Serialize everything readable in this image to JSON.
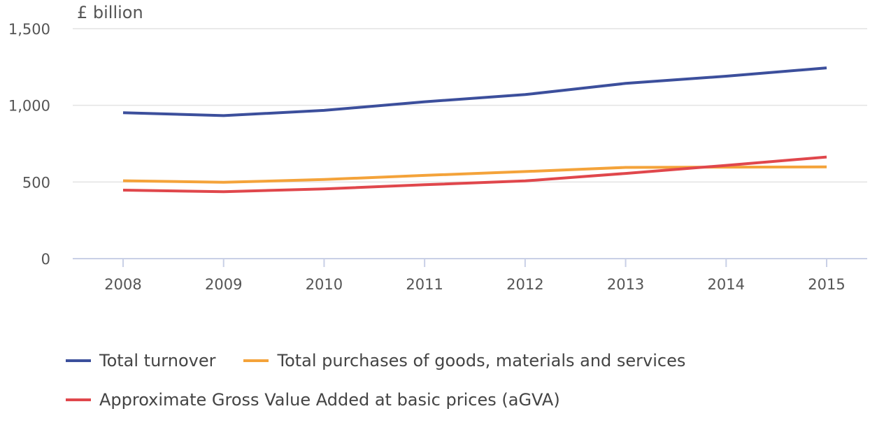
{
  "chart_data": {
    "type": "line",
    "title": "",
    "ylabel": "£ billion",
    "xlabel": "",
    "x": [
      "2008",
      "2009",
      "2010",
      "2011",
      "2012",
      "2013",
      "2014",
      "2015"
    ],
    "ylim": [
      0,
      1500
    ],
    "yticks": [
      0,
      500,
      1000,
      1500
    ],
    "ytick_labels": [
      "0",
      "500",
      "1,000",
      "1,500"
    ],
    "grid": true,
    "legend_position": "bottom-left",
    "series": [
      {
        "name": "Total turnover",
        "color": "#3C4F9C",
        "values": [
          952,
          933,
          967,
          1023,
          1070,
          1143,
          1190,
          1244
        ]
      },
      {
        "name": "Total purchases of goods, materials and services",
        "color": "#F4A33A",
        "values": [
          508,
          498,
          516,
          543,
          568,
          595,
          597,
          598
        ]
      },
      {
        "name": "Approximate Gross Value Added at basic prices (aGVA)",
        "color": "#E0474C",
        "values": [
          447,
          437,
          455,
          482,
          507,
          556,
          608,
          663
        ]
      }
    ]
  }
}
